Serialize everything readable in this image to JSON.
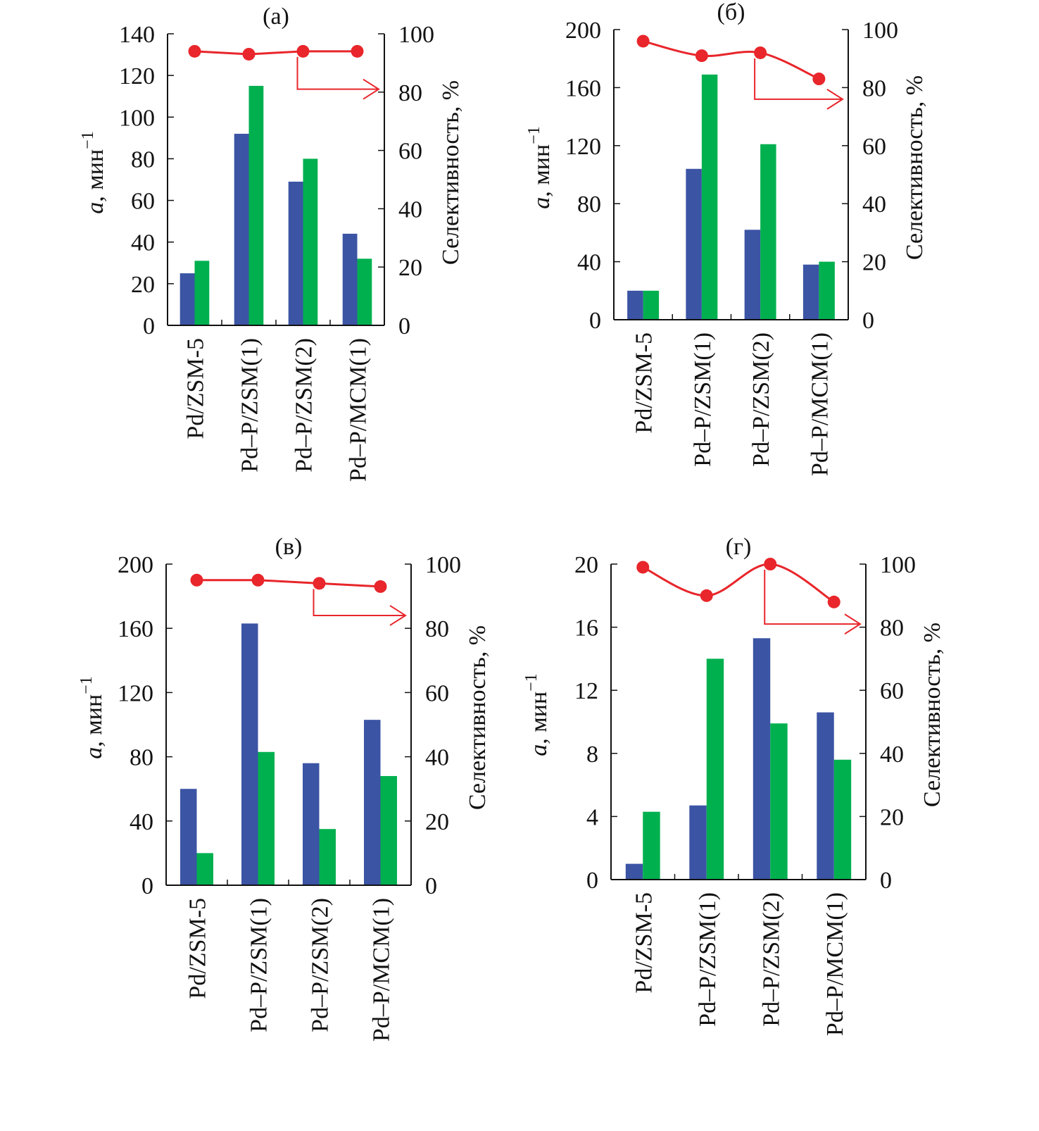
{
  "colors": {
    "series_a": "#3b54a4",
    "series_b": "#00b04f",
    "selectivity": "#e8262b",
    "axis": "#111111"
  },
  "chart_data": [
    {
      "type": "bar",
      "panel_label": "(а)",
      "categories": [
        "Pd/ZSM-5",
        "Pd–P/ZSM(1)",
        "Pd–P/ZSM(2)",
        "Pd–P/MCM(1)"
      ],
      "ylabel_left": "a, мин",
      "ylabel_left_exp": "−1",
      "ylabel_right": "Селективность, %",
      "ylim_left": [
        0,
        140
      ],
      "yticks_left": [
        0,
        20,
        40,
        60,
        80,
        100,
        120,
        140
      ],
      "ylim_right": [
        0,
        100
      ],
      "yticks_right": [
        0,
        20,
        40,
        60,
        80,
        100
      ],
      "series": [
        {
          "name": "blue",
          "values": [
            25,
            92,
            69,
            44
          ]
        },
        {
          "name": "green",
          "values": [
            31,
            115,
            80,
            32
          ]
        }
      ],
      "selectivity": {
        "values": [
          94,
          93,
          94,
          94
        ],
        "smooth": false
      },
      "arrow_from_point": 2,
      "arrow_to_right_value": 81
    },
    {
      "type": "bar",
      "panel_label": "(б)",
      "categories": [
        "Pd/ZSM-5",
        "Pd–P/ZSM(1)",
        "Pd–P/ZSM(2)",
        "Pd–P/MCM(1)"
      ],
      "ylabel_left": "a, мин",
      "ylabel_left_exp": "−1",
      "ylabel_right": "Селективность, %",
      "ylim_left": [
        0,
        200
      ],
      "yticks_left": [
        0,
        40,
        80,
        120,
        160,
        200
      ],
      "ylim_right": [
        0,
        100
      ],
      "yticks_right": [
        0,
        20,
        40,
        60,
        80,
        100
      ],
      "series": [
        {
          "name": "blue",
          "values": [
            20,
            104,
            62,
            38
          ]
        },
        {
          "name": "green",
          "values": [
            20,
            169,
            121,
            40
          ]
        }
      ],
      "selectivity": {
        "values": [
          96,
          91,
          92,
          83
        ],
        "smooth": true
      },
      "arrow_from_point": 2,
      "arrow_to_right_value": 76
    },
    {
      "type": "bar",
      "panel_label": "(в)",
      "categories": [
        "Pd/ZSM-5",
        "Pd–P/ZSM(1)",
        "Pd–P/ZSM(2)",
        "Pd–P/MCM(1)"
      ],
      "ylabel_left": "a, мин",
      "ylabel_left_exp": "−1",
      "ylabel_right": "Селективность, %",
      "ylim_left": [
        0,
        200
      ],
      "yticks_left": [
        0,
        40,
        80,
        120,
        160,
        200
      ],
      "ylim_right": [
        0,
        100
      ],
      "yticks_right": [
        0,
        20,
        40,
        60,
        80,
        100
      ],
      "series": [
        {
          "name": "blue",
          "values": [
            60,
            163,
            76,
            103
          ]
        },
        {
          "name": "green",
          "values": [
            20,
            83,
            35,
            68
          ]
        }
      ],
      "selectivity": {
        "values": [
          95,
          95,
          94,
          93
        ],
        "smooth": false
      },
      "arrow_from_point": 2,
      "arrow_to_right_value": 84
    },
    {
      "type": "bar",
      "panel_label": "(г)",
      "categories": [
        "Pd/ZSM-5",
        "Pd–P/ZSM(1)",
        "Pd–P/ZSM(2)",
        "Pd–P/MCM(1)"
      ],
      "ylabel_left": "a, мин",
      "ylabel_left_exp": "−1",
      "ylabel_right": "Селективность, %",
      "ylim_left": [
        0,
        20
      ],
      "yticks_left": [
        0,
        4,
        8,
        12,
        16,
        20
      ],
      "ylim_right": [
        0,
        100
      ],
      "yticks_right": [
        0,
        20,
        40,
        60,
        80,
        100
      ],
      "series": [
        {
          "name": "blue",
          "values": [
            1.0,
            4.7,
            15.3,
            10.6
          ]
        },
        {
          "name": "green",
          "values": [
            4.3,
            14.0,
            9.9,
            7.6
          ]
        }
      ],
      "selectivity": {
        "values": [
          99,
          90,
          100,
          88
        ],
        "smooth": true
      },
      "arrow_from_point": 2,
      "arrow_to_right_value": 81
    }
  ]
}
